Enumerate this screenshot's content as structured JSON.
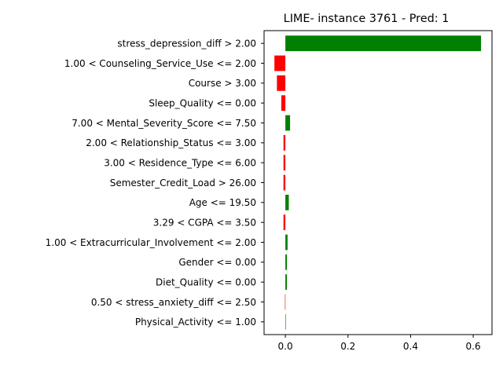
{
  "chart_data": {
    "type": "bar",
    "orientation": "horizontal",
    "title": "LIME- instance 3761 - Pred: 1",
    "xlabel": "",
    "ylabel": "",
    "categories": [
      "stress_depression_diff > 2.00",
      "1.00 < Counseling_Service_Use <= 2.00",
      "Course > 3.00",
      "Sleep_Quality <= 0.00",
      "7.00 < Mental_Severity_Score <= 7.50",
      "2.00 < Relationship_Status <= 3.00",
      "3.00 < Residence_Type <= 6.00",
      "Semester_Credit_Load > 26.00",
      "Age <= 19.50",
      "3.29 < CGPA <= 3.50",
      "1.00 < Extracurricular_Involvement <= 2.00",
      "Gender <= 0.00",
      "Diet_Quality <= 0.00",
      "0.50 < stress_anxiety_diff <= 2.50",
      "Physical_Activity <= 1.00"
    ],
    "values": [
      0.625,
      -0.035,
      -0.027,
      -0.013,
      0.015,
      -0.006,
      -0.006,
      -0.006,
      0.011,
      -0.006,
      0.007,
      0.005,
      0.005,
      -0.0012,
      0.0002
    ],
    "xlim": [
      -0.068,
      0.66
    ],
    "xticks": [
      "0.0",
      "0.2",
      "0.4",
      "0.6"
    ],
    "xtick_values": [
      0.0,
      0.2,
      0.4,
      0.6
    ],
    "colors": {
      "positive": "#008000",
      "negative": "#ff0000"
    },
    "grid": false,
    "legend": "none"
  }
}
